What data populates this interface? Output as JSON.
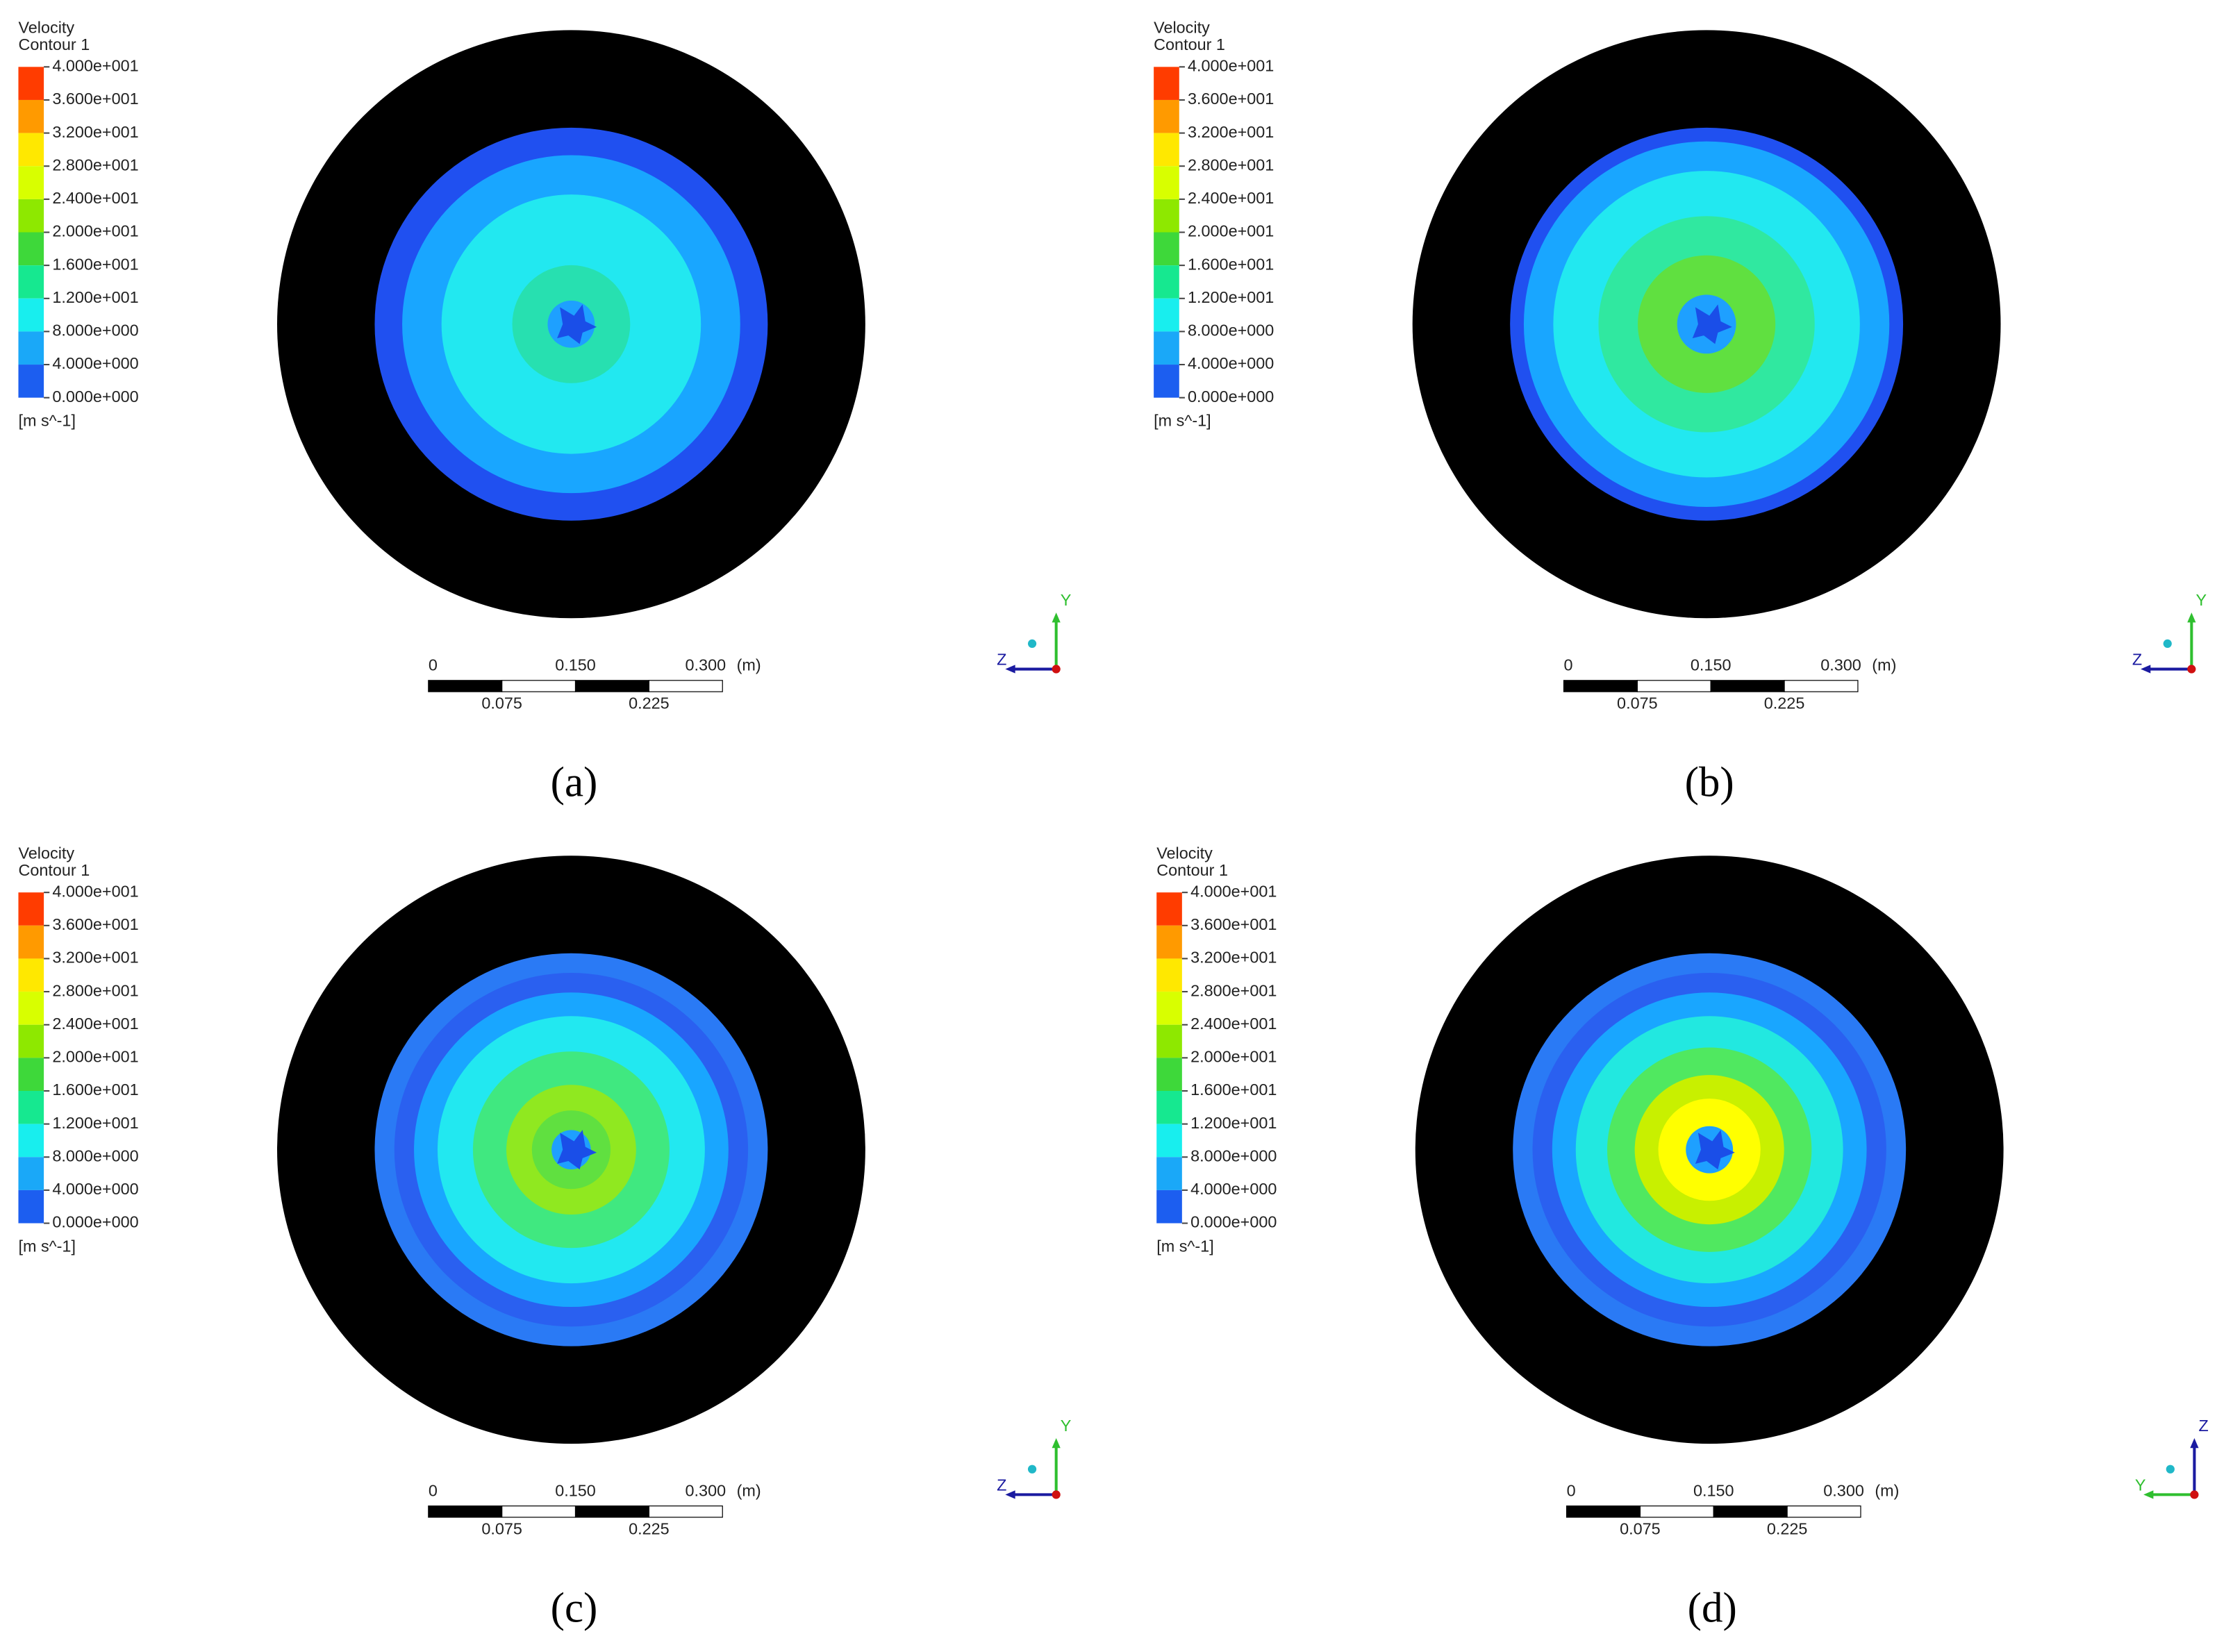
{
  "panels": [
    {
      "label": "(a)",
      "legend": {
        "title": "Velocity",
        "subtitle": "Contour 1",
        "levels": [
          "4.000e+001",
          "3.600e+001",
          "3.200e+001",
          "2.800e+001",
          "2.400e+001",
          "2.000e+001",
          "1.600e+001",
          "1.200e+001",
          "8.000e+000",
          "4.000e+000",
          "0.000e+000"
        ],
        "unit": "[m s^-1]"
      },
      "scale_bar": {
        "top_labels": [
          "0",
          "0.150",
          "0.300"
        ],
        "unit": "(m)",
        "bottom_labels": [
          "0.075",
          "0.225"
        ]
      },
      "axes": {
        "vertical": "Y",
        "horizontal": "Z"
      }
    },
    {
      "label": "(b)",
      "legend": {
        "title": "Velocity",
        "subtitle": "Contour 1",
        "levels": [
          "4.000e+001",
          "3.600e+001",
          "3.200e+001",
          "2.800e+001",
          "2.400e+001",
          "2.000e+001",
          "1.600e+001",
          "1.200e+001",
          "8.000e+000",
          "4.000e+000",
          "0.000e+000"
        ],
        "unit": "[m s^-1]"
      },
      "scale_bar": {
        "top_labels": [
          "0",
          "0.150",
          "0.300"
        ],
        "unit": "(m)",
        "bottom_labels": [
          "0.075",
          "0.225"
        ]
      },
      "axes": {
        "vertical": "Y",
        "horizontal": "Z"
      }
    },
    {
      "label": "(c)",
      "legend": {
        "title": "Velocity",
        "subtitle": "Contour 1",
        "levels": [
          "4.000e+001",
          "3.600e+001",
          "3.200e+001",
          "2.800e+001",
          "2.400e+001",
          "2.000e+001",
          "1.600e+001",
          "1.200e+001",
          "8.000e+000",
          "4.000e+000",
          "0.000e+000"
        ],
        "unit": "[m s^-1]"
      },
      "scale_bar": {
        "top_labels": [
          "0",
          "0.150",
          "0.300"
        ],
        "unit": "(m)",
        "bottom_labels": [
          "0.075",
          "0.225"
        ]
      },
      "axes": {
        "vertical": "Y",
        "horizontal": "Z"
      }
    },
    {
      "label": "(d)",
      "legend": {
        "title": "Velocity",
        "subtitle": "Contour 1",
        "levels": [
          "4.000e+001",
          "3.600e+001",
          "3.200e+001",
          "2.800e+001",
          "2.400e+001",
          "2.000e+001",
          "1.600e+001",
          "1.200e+001",
          "8.000e+000",
          "4.000e+000",
          "0.000e+000"
        ],
        "unit": "[m s^-1]"
      },
      "scale_bar": {
        "top_labels": [
          "0",
          "0.150",
          "0.300"
        ],
        "unit": "(m)",
        "bottom_labels": [
          "0.075",
          "0.225"
        ]
      },
      "axes": {
        "vertical": "Z",
        "horizontal": "Y"
      }
    }
  ]
}
